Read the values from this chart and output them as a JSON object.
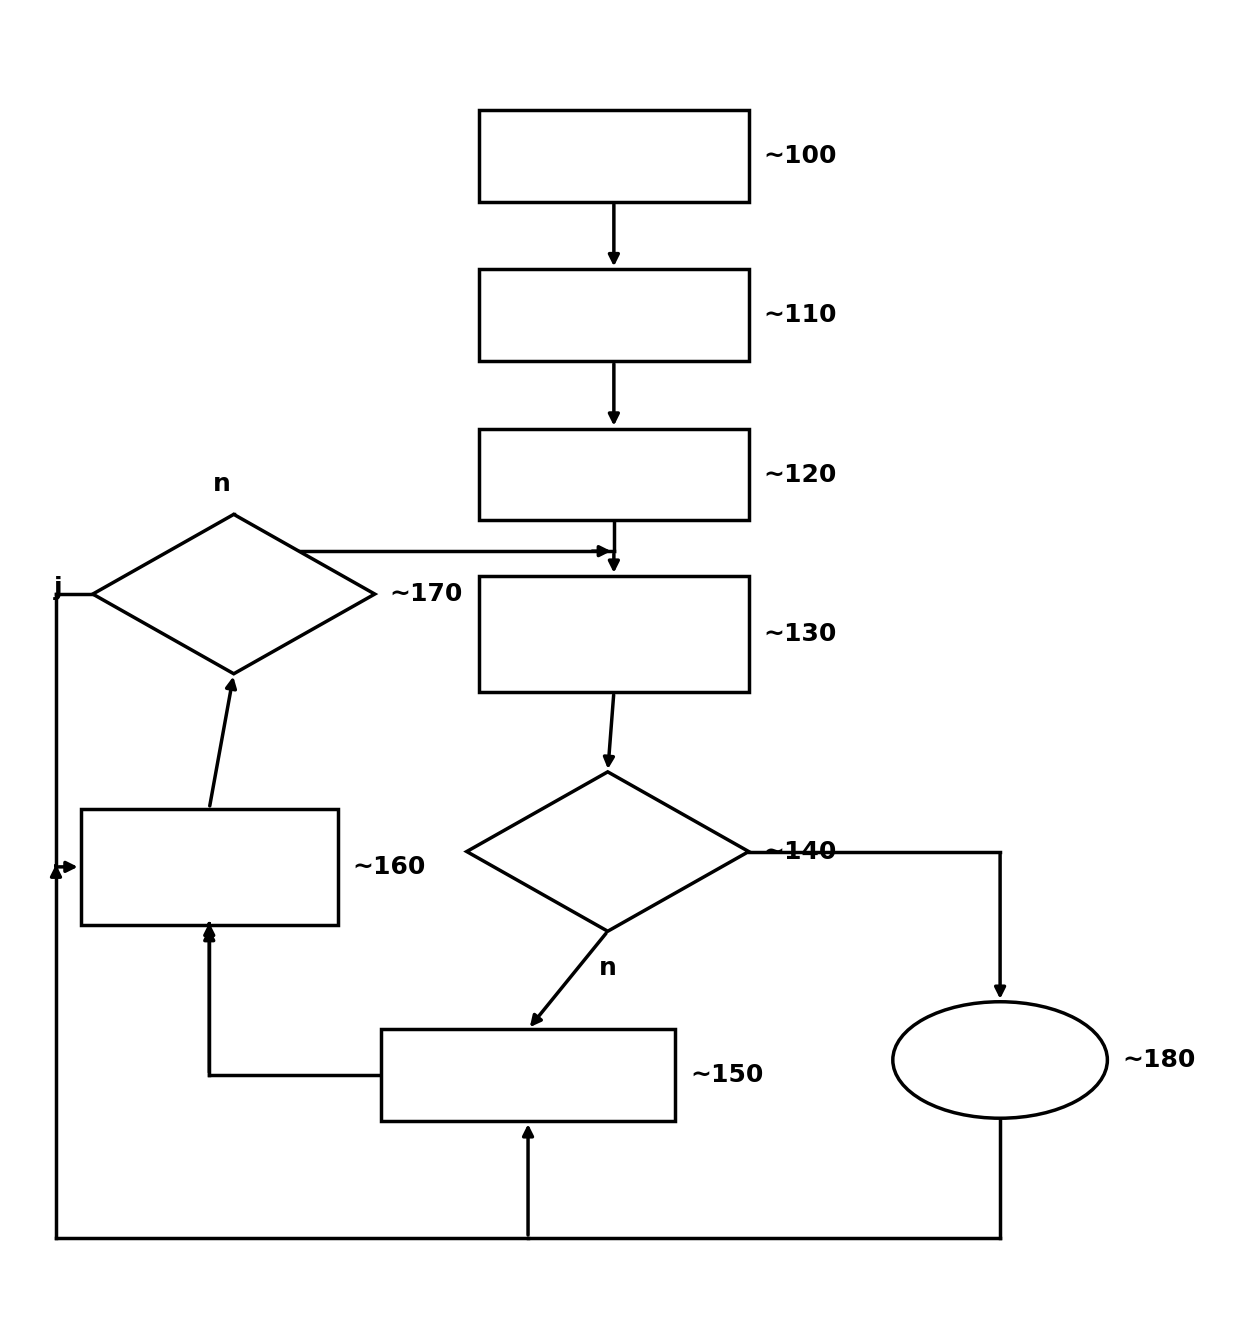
{
  "bg_color": "#ffffff",
  "lc": "#000000",
  "lw": 2.5,
  "fs": 18,
  "B100": [
    0.385,
    0.875,
    0.22,
    0.075
  ],
  "B110": [
    0.385,
    0.745,
    0.22,
    0.075
  ],
  "B120": [
    0.385,
    0.615,
    0.22,
    0.075
  ],
  "B130": [
    0.385,
    0.475,
    0.22,
    0.095
  ],
  "B160": [
    0.06,
    0.285,
    0.21,
    0.095
  ],
  "B150": [
    0.305,
    0.125,
    0.24,
    0.075
  ],
  "D170": [
    0.185,
    0.555,
    0.115,
    0.065
  ],
  "D140": [
    0.49,
    0.345,
    0.115,
    0.065
  ],
  "OV180": [
    0.81,
    0.175,
    0.175,
    0.095
  ],
  "label_100": "100",
  "label_110": "110",
  "label_120": "120",
  "label_130": "130",
  "label_140": "140",
  "label_150": "150",
  "label_160": "160",
  "label_170": "170",
  "label_180": "180"
}
